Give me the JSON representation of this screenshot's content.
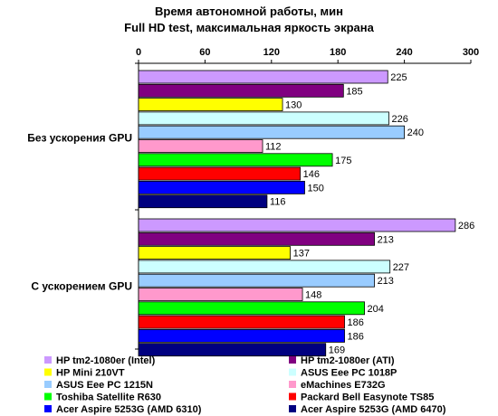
{
  "chart_data": {
    "type": "bar",
    "orientation": "horizontal",
    "title": "Время автономной работы, мин",
    "subtitle": "Full HD test, максимальная яркость экрана",
    "xlim": [
      0,
      300
    ],
    "xticks": [
      0,
      60,
      120,
      180,
      240,
      300
    ],
    "xaxis_position": "top",
    "grid": false,
    "legend_position": "bottom",
    "categories": [
      "Без ускорения GPU",
      "С ускорением GPU"
    ],
    "series": [
      {
        "name": "HP tm2-1080er (Intel)",
        "color": "#cc99ff",
        "values": [
          225,
          286
        ]
      },
      {
        "name": "HP tm2-1080er (ATI)",
        "color": "#800080",
        "values": [
          185,
          213
        ]
      },
      {
        "name": "HP Mini 210VT",
        "color": "#ffff00",
        "values": [
          130,
          137
        ]
      },
      {
        "name": "ASUS Eee PC 1018P",
        "color": "#ccffff",
        "values": [
          226,
          227
        ]
      },
      {
        "name": "ASUS Eee PC 1215N",
        "color": "#99ccff",
        "values": [
          240,
          213
        ]
      },
      {
        "name": "eMachines E732G",
        "color": "#ff99cc",
        "values": [
          112,
          148
        ]
      },
      {
        "name": "Toshiba Satellite R630",
        "color": "#00ff00",
        "values": [
          175,
          204
        ]
      },
      {
        "name": "Packard Bell Easynote TS85",
        "color": "#ff0000",
        "values": [
          146,
          186
        ]
      },
      {
        "name": "Acer Aspire 5253G (AMD 6310)",
        "color": "#0000ff",
        "values": [
          150,
          186
        ]
      },
      {
        "name": "Acer Aspire 5253G (AMD 6470)",
        "color": "#000080",
        "values": [
          116,
          169
        ]
      }
    ]
  }
}
